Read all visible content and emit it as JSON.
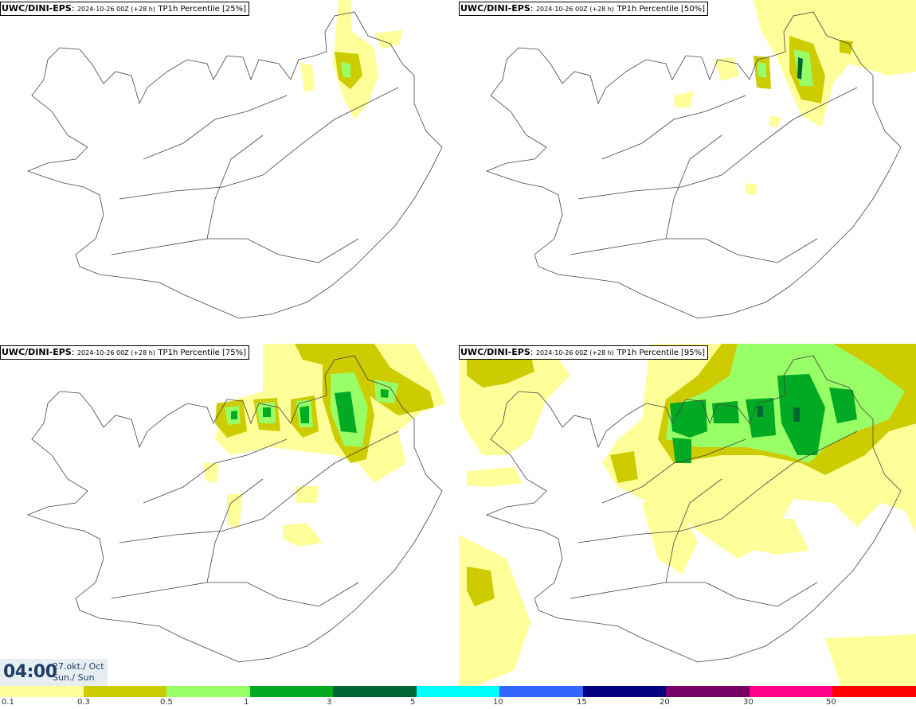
{
  "panels": [
    {
      "model": "UWC/DINI-EPS",
      "run": "2024-10-26 00Z (+28 h)",
      "field": "TP1h Percentile [25%]"
    },
    {
      "model": "UWC/DINI-EPS",
      "run": "2024-10-26 00Z (+28 h)",
      "field": "TP1h Percentile [50%]"
    },
    {
      "model": "UWC/DINI-EPS",
      "run": "2024-10-26 00Z (+28 h)",
      "field": "TP1h Percentile [75%]"
    },
    {
      "model": "UWC/DINI-EPS",
      "run": "2024-10-26 00Z (+28 h)",
      "field": "TP1h Percentile [95%]"
    }
  ],
  "valid_time": {
    "clock": "04:00",
    "date_line1": "27.okt./ Oct",
    "date_line2": "Sun./ Sun"
  },
  "legend": {
    "ticks": [
      "0.1",
      "0.3",
      "0.5",
      "1",
      "3",
      "5",
      "10",
      "15",
      "20",
      "30",
      "50"
    ],
    "colors": [
      "#ffff99",
      "#cccc00",
      "#99ff66",
      "#00aa22",
      "#006633",
      "#00ffff",
      "#3366ff",
      "#000080",
      "#770066",
      "#ff0088",
      "#ff0000"
    ]
  }
}
